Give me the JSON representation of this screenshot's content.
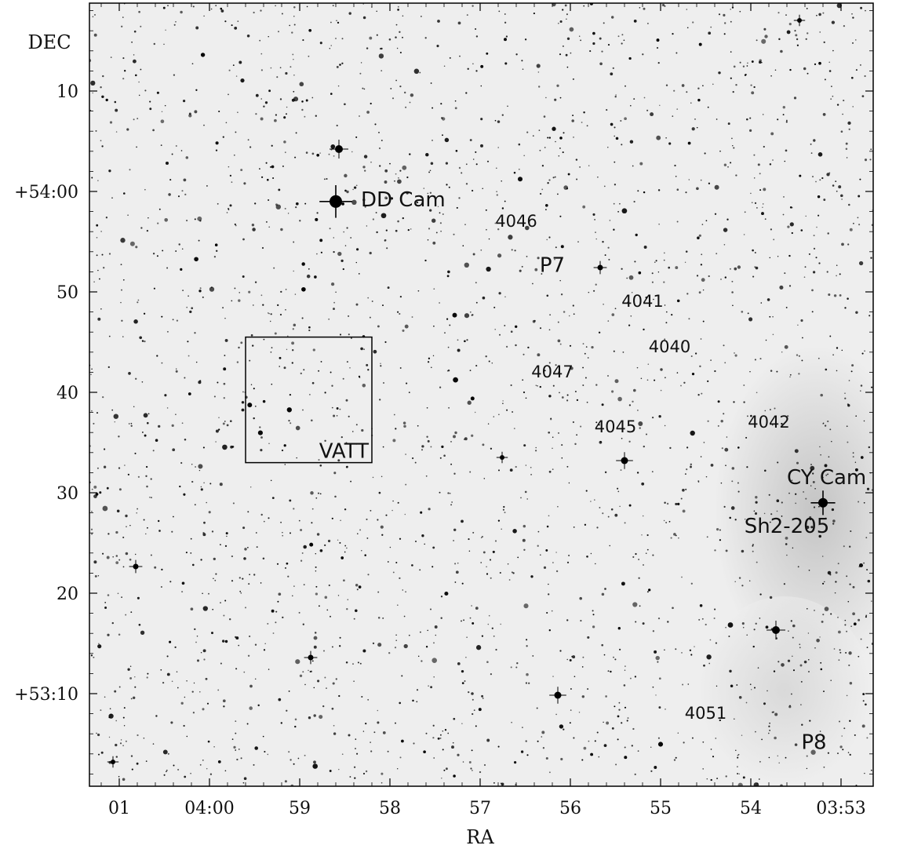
{
  "chart_data": {
    "type": "scatter",
    "xlabel": "RA",
    "ylabel": "DEC",
    "x_axis_direction": "RA increases to the left",
    "x_ticks": [
      "01",
      "04:00",
      "59",
      "58",
      "57",
      "56",
      "55",
      "54",
      "03:53"
    ],
    "y_ticks": [
      "10",
      "+54:00",
      "50",
      "40",
      "30",
      "20",
      "+53:10"
    ],
    "background": "inverted grayscale sky image, stars shown as black dots",
    "colors": {
      "sky": "#eeeeee",
      "nebula": "#c4c4c4",
      "star": "#000000"
    },
    "bright_stars": [
      {
        "name": "DD Cam",
        "label": "DD Cam",
        "ra_min": 58.6,
        "dec_min": 59
      },
      {
        "name": "CY Cam",
        "label": "CY Cam",
        "ra_min": 53.2,
        "dec_min": 29
      }
    ],
    "annotations": [
      {
        "label": "4046",
        "ra_min": 56.6,
        "dec_min": 56.5,
        "size": "small"
      },
      {
        "label": "P7",
        "ra_min": 56.2,
        "dec_min": 52,
        "size": "large"
      },
      {
        "label": "4041",
        "ra_min": 55.2,
        "dec_min": 48.5,
        "size": "small"
      },
      {
        "label": "4040",
        "ra_min": 54.9,
        "dec_min": 44,
        "size": "small"
      },
      {
        "label": "4047",
        "ra_min": 56.2,
        "dec_min": 41.5,
        "size": "small"
      },
      {
        "label": "4045",
        "ra_min": 55.5,
        "dec_min": 36,
        "size": "small"
      },
      {
        "label": "4042",
        "ra_min": 53.8,
        "dec_min": 36.5,
        "size": "small"
      },
      {
        "label": "Sh2-205",
        "ra_min": 53.6,
        "dec_min": 26,
        "size": "large"
      },
      {
        "label": "4051",
        "ra_min": 54.5,
        "dec_min": 7.5,
        "size": "small"
      },
      {
        "label": "P8",
        "ra_min": 53.3,
        "dec_min": 4.5,
        "size": "large"
      }
    ],
    "fields": [
      {
        "label": "VATT",
        "ra_from_min": 59.6,
        "ra_to_min": 58.2,
        "dec_from_min": 33,
        "dec_to_min": 45.5
      }
    ]
  }
}
